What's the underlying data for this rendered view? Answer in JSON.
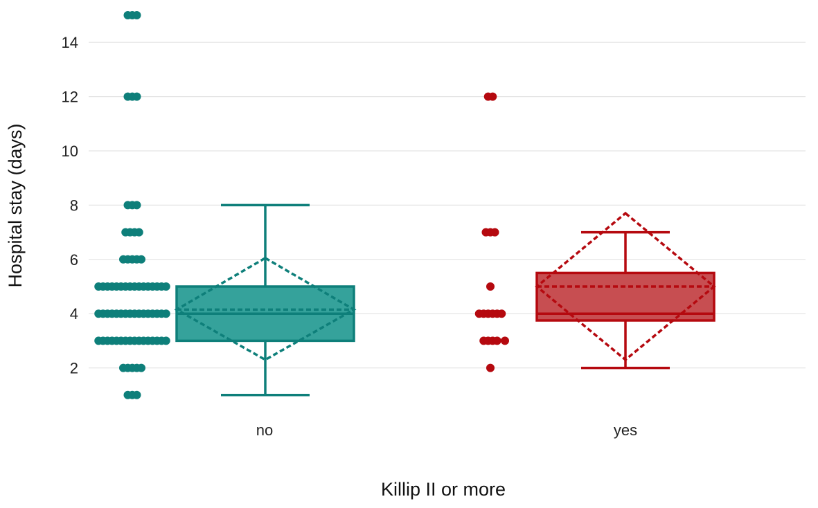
{
  "chart_data": {
    "type": "box",
    "xlabel": "Killip II or more",
    "ylabel": "Hospital stay (days)",
    "ylim": [
      0.4,
      15.6
    ],
    "yticks": [
      2,
      4,
      6,
      8,
      10,
      12,
      14
    ],
    "grid": "horizontal",
    "categories": [
      "no",
      "yes"
    ],
    "groups": [
      {
        "category": "no",
        "color": "#0e7f7a",
        "fill": "#2a9d96",
        "box": {
          "min": 1,
          "q1": 3,
          "median": 4,
          "q3": 5,
          "max": 8,
          "mean": 4.15,
          "mean_ci_low": 2.3,
          "mean_ci_high": 6.05
        },
        "points": [
          {
            "y": 15,
            "count": 3
          },
          {
            "y": 12,
            "count": 3
          },
          {
            "y": 8,
            "count": 3
          },
          {
            "y": 7,
            "count": 4
          },
          {
            "y": 6,
            "count": 5
          },
          {
            "y": 5,
            "count": 16
          },
          {
            "y": 4,
            "count": 16
          },
          {
            "y": 3,
            "count": 16
          },
          {
            "y": 2,
            "count": 5
          },
          {
            "y": 1,
            "count": 3
          }
        ]
      },
      {
        "category": "yes",
        "color": "#b5090f",
        "fill": "#c44448",
        "box": {
          "min": 2,
          "q1": 3.75,
          "median": 4,
          "q3": 5.5,
          "max": 7,
          "mean": 5.0,
          "mean_ci_low": 2.3,
          "mean_ci_high": 7.7
        },
        "points": [
          {
            "y": 12,
            "count": 2
          },
          {
            "y": 7,
            "count": 3
          },
          {
            "y": 5,
            "count": 1
          },
          {
            "y": 4,
            "count": 6
          },
          {
            "y": 3,
            "count": 4
          },
          {
            "y": 3,
            "count": 1,
            "offset": "right"
          },
          {
            "y": 2,
            "count": 1
          }
        ]
      }
    ]
  }
}
